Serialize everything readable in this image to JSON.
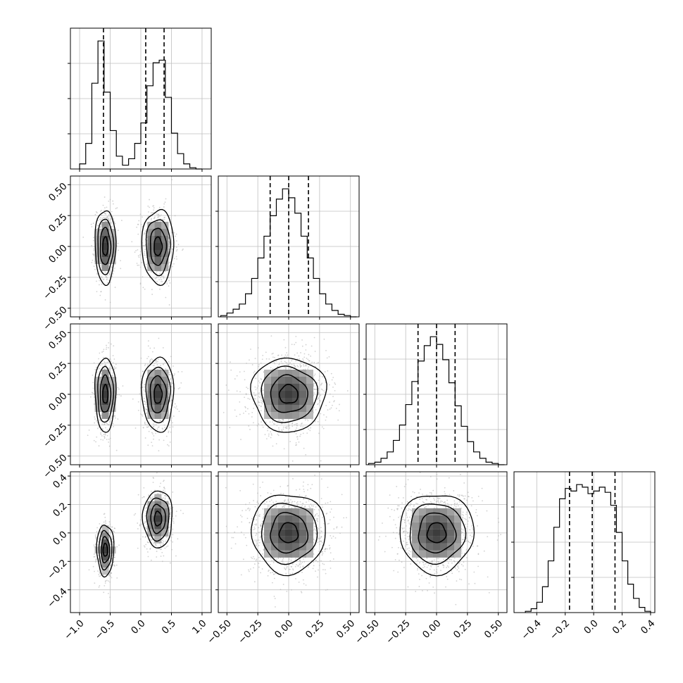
{
  "chart_data": {
    "type": "corner",
    "title": "",
    "parameters": [
      "",
      "",
      "",
      ""
    ],
    "grid": true,
    "colors": {
      "hist": "#000000",
      "contour": "#000000",
      "points": "#b4b4b4",
      "grid": "#bfbfbf"
    },
    "histograms": [
      {
        "param_index": 0,
        "x_range": [
          -1.15,
          1.15
        ],
        "x_ticks": [
          -1.0,
          -0.5,
          0.0,
          0.5,
          1.0
        ],
        "x_tick_labels": [
          "−1.0",
          "−0.5",
          "0.0",
          "0.5",
          "1.0"
        ],
        "bin_edges": [
          -1.0,
          -0.9,
          -0.8,
          -0.7,
          -0.6,
          -0.5,
          -0.4,
          -0.3,
          -0.2,
          -0.1,
          0.0,
          0.1,
          0.2,
          0.3,
          0.4,
          0.5,
          0.6,
          0.7,
          0.8,
          0.9,
          1.0
        ],
        "counts": [
          0.04,
          0.2,
          0.67,
          1.0,
          0.6,
          0.3,
          0.1,
          0.03,
          0.08,
          0.2,
          0.36,
          0.65,
          0.83,
          0.85,
          0.56,
          0.28,
          0.12,
          0.04,
          0.01,
          0.0
        ],
        "quantiles": [
          -0.61,
          0.08,
          0.38
        ]
      },
      {
        "param_index": 1,
        "x_range": [
          -0.57,
          0.57
        ],
        "x_ticks": [
          -0.5,
          -0.25,
          0.0,
          0.25,
          0.5
        ],
        "x_tick_labels": [
          "−0.50",
          "−0.25",
          "0.00",
          "0.25",
          "0.50"
        ],
        "bin_edges": [
          -0.55,
          -0.5,
          -0.45,
          -0.4,
          -0.35,
          -0.3,
          -0.25,
          -0.2,
          -0.15,
          -0.1,
          -0.05,
          0.0,
          0.05,
          0.1,
          0.15,
          0.2,
          0.25,
          0.3,
          0.35,
          0.4,
          0.45,
          0.5,
          0.55
        ],
        "counts": [
          0.01,
          0.03,
          0.06,
          0.1,
          0.18,
          0.3,
          0.46,
          0.63,
          0.79,
          0.92,
          1.0,
          0.93,
          0.81,
          0.63,
          0.46,
          0.3,
          0.18,
          0.1,
          0.05,
          0.02,
          0.01,
          0.0
        ],
        "quantiles": [
          -0.15,
          0.0,
          0.16
        ]
      },
      {
        "param_index": 2,
        "x_range": [
          -0.57,
          0.57
        ],
        "x_ticks": [
          -0.5,
          -0.25,
          0.0,
          0.25,
          0.5
        ],
        "x_tick_labels": [
          "−0.50",
          "−0.25",
          "0.00",
          "0.25",
          "0.50"
        ],
        "bin_edges": [
          -0.55,
          -0.5,
          -0.45,
          -0.4,
          -0.35,
          -0.3,
          -0.25,
          -0.2,
          -0.15,
          -0.1,
          -0.05,
          0.0,
          0.05,
          0.1,
          0.15,
          0.2,
          0.25,
          0.3,
          0.35,
          0.4,
          0.45,
          0.5,
          0.55
        ],
        "counts": [
          0.01,
          0.02,
          0.05,
          0.1,
          0.19,
          0.31,
          0.47,
          0.65,
          0.81,
          0.93,
          1.0,
          0.94,
          0.82,
          0.64,
          0.46,
          0.3,
          0.18,
          0.1,
          0.05,
          0.02,
          0.01,
          0.0
        ],
        "quantiles": [
          -0.15,
          0.0,
          0.15
        ]
      },
      {
        "param_index": 3,
        "x_range": [
          -0.56,
          0.43
        ],
        "x_ticks": [
          -0.4,
          -0.2,
          0.0,
          0.2,
          0.4
        ],
        "x_tick_labels": [
          "−0.4",
          "−0.2",
          "0.0",
          "0.2",
          "0.4"
        ],
        "bin_edges": [
          -0.48,
          -0.44,
          -0.4,
          -0.36,
          -0.32,
          -0.28,
          -0.24,
          -0.2,
          -0.16,
          -0.12,
          -0.08,
          -0.04,
          0.0,
          0.04,
          0.08,
          0.12,
          0.16,
          0.2,
          0.24,
          0.28,
          0.32,
          0.36,
          0.4
        ],
        "counts": [
          0.01,
          0.03,
          0.08,
          0.2,
          0.4,
          0.66,
          0.88,
          0.96,
          0.94,
          0.99,
          0.97,
          0.92,
          0.94,
          0.97,
          0.93,
          0.83,
          0.62,
          0.4,
          0.22,
          0.11,
          0.04,
          0.01
        ],
        "quantiles": [
          -0.17,
          -0.01,
          0.15
        ]
      }
    ],
    "panels_2d": [
      {
        "row": 1,
        "col": 0,
        "x_range": [
          -1.15,
          1.15
        ],
        "y_range": [
          -0.57,
          0.57
        ],
        "clusters": [
          {
            "center": [
              -0.58,
              0.0
            ],
            "sigma": [
              0.085,
              0.15
            ]
          },
          {
            "center": [
              0.28,
              0.0
            ],
            "sigma": [
              0.13,
              0.15
            ]
          }
        ],
        "y_ticks": [
          -0.5,
          -0.25,
          0.0,
          0.25,
          0.5
        ],
        "y_tick_labels": [
          "−0.50",
          "−0.25",
          "0.00",
          "0.25",
          "0.50"
        ]
      },
      {
        "row": 2,
        "col": 0,
        "x_range": [
          -1.15,
          1.15
        ],
        "y_range": [
          -0.57,
          0.57
        ],
        "clusters": [
          {
            "center": [
              -0.58,
              0.0
            ],
            "sigma": [
              0.085,
              0.15
            ]
          },
          {
            "center": [
              0.28,
              0.0
            ],
            "sigma": [
              0.13,
              0.15
            ]
          }
        ],
        "y_ticks": [
          -0.5,
          -0.25,
          0.0,
          0.25,
          0.5
        ],
        "y_tick_labels": [
          "−0.50",
          "−0.25",
          "0.00",
          "0.25",
          "0.50"
        ]
      },
      {
        "row": 2,
        "col": 1,
        "x_range": [
          -0.57,
          0.57
        ],
        "y_range": [
          -0.57,
          0.57
        ],
        "clusters": [
          {
            "center": [
              0.0,
              0.0
            ],
            "sigma": [
              0.15,
              0.15
            ]
          }
        ]
      },
      {
        "row": 3,
        "col": 0,
        "x_range": [
          -1.15,
          1.15
        ],
        "y_range": [
          -0.56,
          0.43
        ],
        "clusters": [
          {
            "center": [
              -0.58,
              -0.12
            ],
            "sigma": [
              0.07,
              0.09
            ]
          },
          {
            "center": [
              0.28,
              0.1
            ],
            "sigma": [
              0.12,
              0.1
            ]
          }
        ],
        "y_ticks": [
          -0.4,
          -0.2,
          0.0,
          0.2,
          0.4
        ],
        "y_tick_labels": [
          "−0.4",
          "−0.2",
          "0.0",
          "0.2",
          "0.4"
        ]
      },
      {
        "row": 3,
        "col": 1,
        "x_range": [
          -0.57,
          0.57
        ],
        "y_range": [
          -0.56,
          0.43
        ],
        "clusters": [
          {
            "center": [
              0.0,
              0.0
            ],
            "sigma": [
              0.15,
              0.14
            ]
          }
        ]
      },
      {
        "row": 3,
        "col": 2,
        "x_range": [
          -0.57,
          0.57
        ],
        "y_range": [
          -0.56,
          0.43
        ],
        "clusters": [
          {
            "center": [
              0.0,
              0.0
            ],
            "sigma": [
              0.15,
              0.14
            ]
          }
        ]
      }
    ],
    "contour_levels": [
      0.118,
      0.393,
      0.675,
      0.865
    ]
  }
}
